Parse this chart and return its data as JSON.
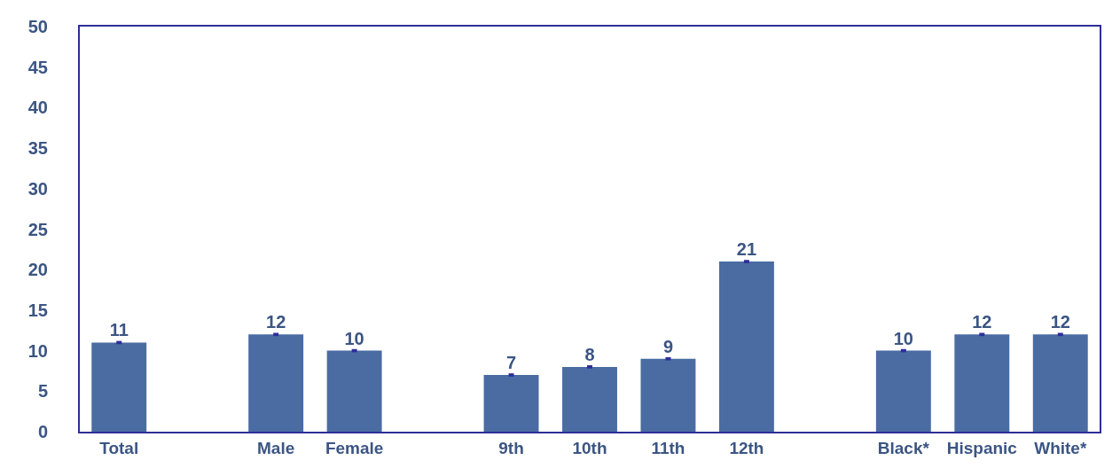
{
  "chart_data": {
    "type": "bar",
    "categories": [
      "Total",
      null,
      "Male",
      "Female",
      null,
      "9th",
      "10th",
      "11th",
      "12th",
      null,
      "Black*",
      "Hispanic",
      "White*"
    ],
    "values": [
      11,
      null,
      12,
      10,
      null,
      7,
      8,
      9,
      21,
      null,
      10,
      12,
      12
    ],
    "errors": [
      0.2,
      null,
      0.2,
      0.2,
      null,
      0.2,
      0.2,
      0.2,
      0.2,
      null,
      0.2,
      0.2,
      0.2
    ],
    "color": "#4a6ca2",
    "ylim": [
      0,
      50
    ],
    "yticks": [
      0,
      5,
      10,
      15,
      20,
      25,
      30,
      35,
      40,
      45,
      50
    ],
    "data_labels": true
  }
}
